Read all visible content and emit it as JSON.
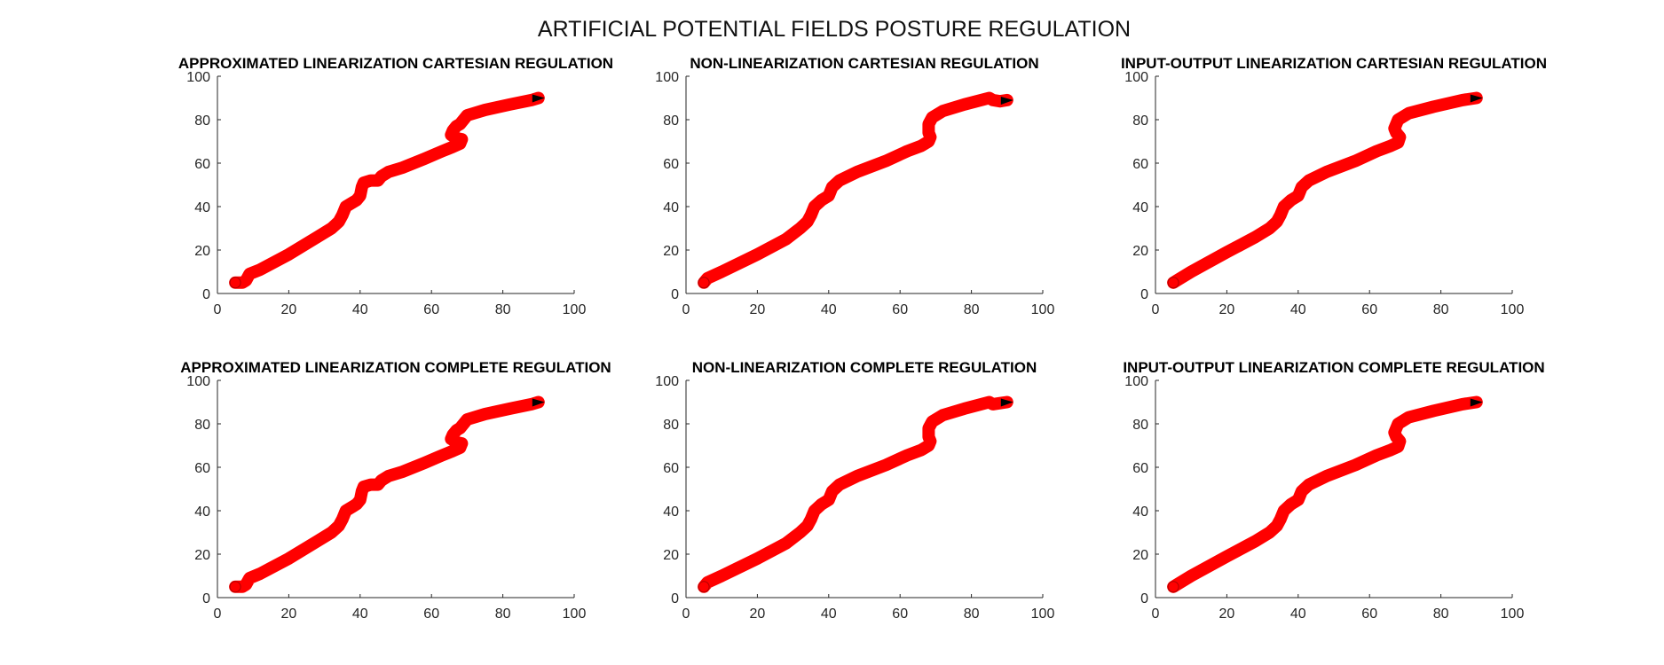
{
  "figure": {
    "title": "ARTIFICIAL POTENTIAL FIELDS POSTURE REGULATION"
  },
  "style": {
    "trajectory_color": "#ff0000",
    "end_marker_color": "#000000",
    "axis_color": "#262626"
  },
  "chart_data": [
    {
      "type": "line",
      "title": "APPROXIMATED LINEARIZATION CARTESIAN REGULATION",
      "xlim": [
        0,
        100
      ],
      "ylim": [
        0,
        100
      ],
      "xticks": [
        0,
        20,
        40,
        60,
        80,
        100
      ],
      "yticks": [
        0,
        20,
        40,
        60,
        80,
        100
      ],
      "grid": false,
      "series": [
        {
          "x": [
            5,
            7,
            8,
            9,
            12,
            20,
            28,
            32,
            34,
            35,
            36,
            38,
            39,
            40,
            40.5,
            41,
            43,
            45,
            46,
            48,
            52,
            58,
            63,
            66,
            68,
            68.5,
            67,
            65.5,
            66,
            67,
            68,
            70,
            75,
            82,
            88,
            90
          ],
          "y": [
            5,
            5,
            6,
            9,
            11,
            18,
            26,
            30,
            33,
            36,
            40,
            42,
            43,
            45,
            49,
            51,
            52,
            52,
            54,
            56,
            58,
            62,
            65.5,
            67.5,
            69,
            71,
            71.5,
            73,
            75,
            77,
            78,
            82,
            84.5,
            87,
            89,
            90
          ]
        }
      ]
    },
    {
      "type": "line",
      "title": "NON-LINEARIZATION CARTESIAN REGULATION",
      "xlim": [
        0,
        100
      ],
      "ylim": [
        0,
        100
      ],
      "xticks": [
        0,
        20,
        40,
        60,
        80,
        100
      ],
      "yticks": [
        0,
        20,
        40,
        60,
        80,
        100
      ],
      "grid": false,
      "series": [
        {
          "x": [
            5,
            6,
            10,
            20,
            28,
            32,
            34,
            35,
            36,
            38,
            40,
            41,
            43,
            48,
            56,
            62,
            66,
            68,
            68.5,
            68,
            68,
            69,
            72,
            78,
            85,
            86,
            88,
            90
          ],
          "y": [
            5,
            7,
            10,
            18,
            25,
            30,
            33,
            36,
            40,
            43,
            45,
            49,
            52,
            56,
            61,
            65.5,
            68,
            70,
            72,
            74,
            78,
            81,
            84,
            87,
            90,
            89,
            88.5,
            89
          ]
        }
      ]
    },
    {
      "type": "line",
      "title": "INPUT-OUTPUT LINEARIZATION CARTESIAN REGULATION",
      "xlim": [
        0,
        100
      ],
      "ylim": [
        0,
        100
      ],
      "xticks": [
        0,
        20,
        40,
        60,
        80,
        100
      ],
      "yticks": [
        0,
        20,
        40,
        60,
        80,
        100
      ],
      "grid": false,
      "series": [
        {
          "x": [
            5,
            6,
            10,
            20,
            28,
            32,
            34,
            35,
            36,
            38,
            40,
            41,
            43,
            48,
            56,
            62,
            66,
            68,
            68.5,
            67.5,
            67,
            68,
            71,
            78,
            86,
            90
          ],
          "y": [
            5,
            6,
            10,
            19,
            26,
            30,
            33,
            36,
            40,
            43,
            45,
            49,
            52,
            56,
            61,
            65.5,
            68,
            69.5,
            72,
            74,
            76,
            80,
            83,
            86,
            89,
            90
          ]
        }
      ]
    },
    {
      "type": "line",
      "title": "APPROXIMATED LINEARIZATION COMPLETE REGULATION",
      "xlim": [
        0,
        100
      ],
      "ylim": [
        0,
        100
      ],
      "xticks": [
        0,
        20,
        40,
        60,
        80,
        100
      ],
      "yticks": [
        0,
        20,
        40,
        60,
        80,
        100
      ],
      "grid": false,
      "series": [
        {
          "x": [
            5,
            7,
            8,
            9,
            12,
            20,
            28,
            32,
            34,
            35,
            36,
            38,
            39,
            40,
            40.5,
            41,
            43,
            45,
            46,
            48,
            52,
            58,
            63,
            66,
            68,
            68.5,
            67,
            65.5,
            66,
            67,
            68,
            70,
            75,
            82,
            88,
            90
          ],
          "y": [
            5,
            5,
            6,
            9,
            11,
            18,
            26,
            30,
            33,
            36,
            40,
            42,
            43,
            45,
            49,
            51,
            52,
            52,
            54,
            56,
            58,
            62,
            65.5,
            67.5,
            69,
            71,
            71.5,
            73,
            75,
            77,
            78,
            82,
            84.5,
            87,
            89,
            90
          ]
        }
      ]
    },
    {
      "type": "line",
      "title": "NON-LINEARIZATION COMPLETE REGULATION",
      "xlim": [
        0,
        100
      ],
      "ylim": [
        0,
        100
      ],
      "xticks": [
        0,
        20,
        40,
        60,
        80,
        100
      ],
      "yticks": [
        0,
        20,
        40,
        60,
        80,
        100
      ],
      "grid": false,
      "series": [
        {
          "x": [
            5,
            6,
            10,
            20,
            28,
            32,
            34,
            35,
            36,
            38,
            40,
            41,
            43,
            48,
            56,
            62,
            66,
            68,
            68.5,
            68,
            68,
            69,
            72,
            78,
            85,
            86,
            88,
            90
          ],
          "y": [
            5,
            7,
            10,
            18,
            25,
            30,
            33,
            36,
            40,
            43,
            45,
            49,
            52,
            56,
            61,
            65.5,
            68,
            70,
            72,
            74,
            78,
            81,
            84,
            87,
            90,
            89,
            89.5,
            90
          ]
        }
      ]
    },
    {
      "type": "line",
      "title": "INPUT-OUTPUT LINEARIZATION COMPLETE REGULATION",
      "xlim": [
        0,
        100
      ],
      "ylim": [
        0,
        100
      ],
      "xticks": [
        0,
        20,
        40,
        60,
        80,
        100
      ],
      "yticks": [
        0,
        20,
        40,
        60,
        80,
        100
      ],
      "grid": false,
      "series": [
        {
          "x": [
            5,
            6,
            10,
            20,
            28,
            32,
            34,
            35,
            36,
            38,
            40,
            41,
            43,
            48,
            56,
            62,
            66,
            68,
            68.5,
            67.5,
            67,
            68,
            71,
            78,
            86,
            90
          ],
          "y": [
            5,
            6,
            10,
            19,
            26,
            30,
            33,
            36,
            40,
            43,
            45,
            49,
            52,
            56,
            61,
            65.5,
            68,
            69.5,
            72,
            74,
            76,
            80,
            83,
            86,
            89,
            90
          ]
        }
      ]
    }
  ]
}
